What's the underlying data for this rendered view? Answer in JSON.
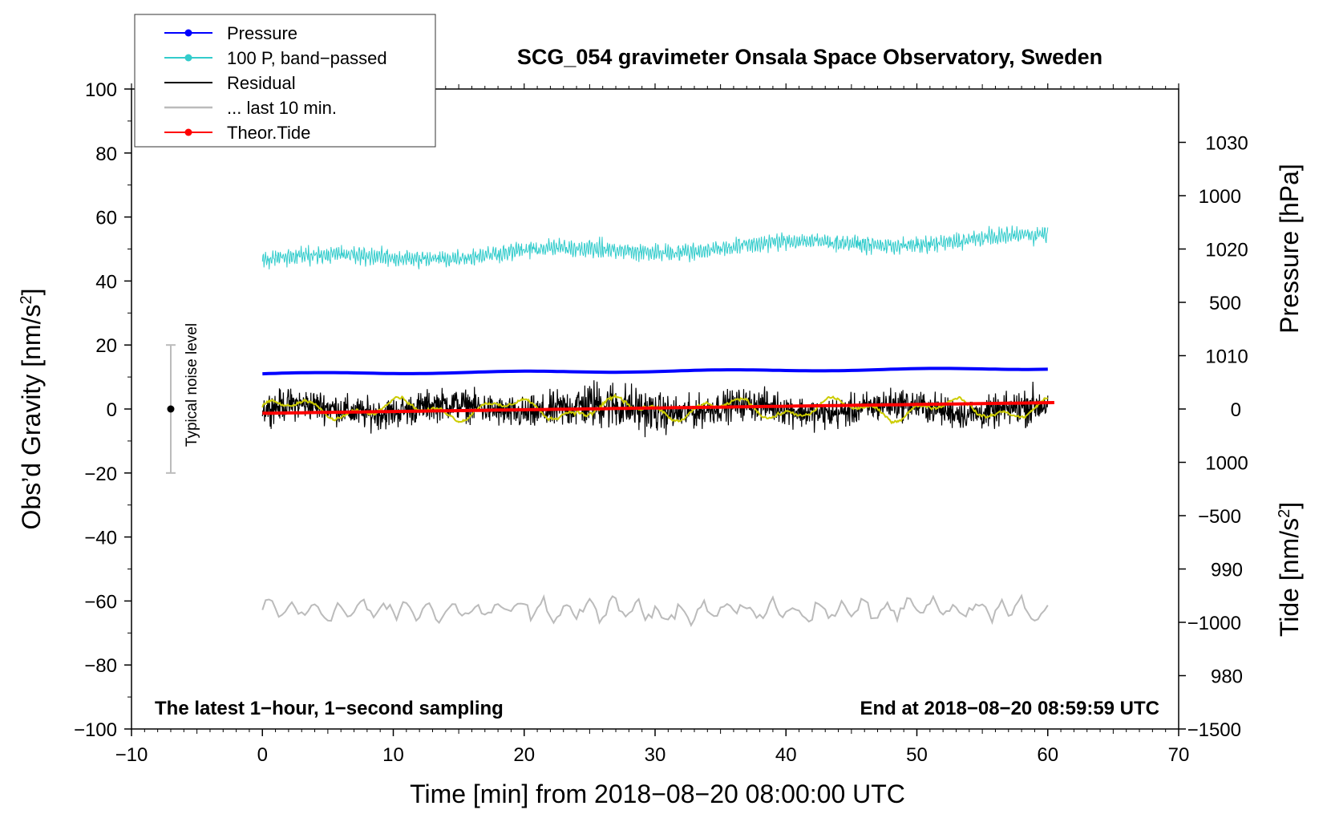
{
  "chart_data": {
    "type": "line",
    "title": "SCG_054 gravimeter Onsala Space Observatory, Sweden",
    "xlabel": "Time [min] from 2018−08−20 08:00:00 UTC",
    "ylabel_left": "Obs’d Gravity [nm/s",
    "ylabel_right_top": "Pressure [hPa]",
    "ylabel_right_bottom": "Tide [nm/s",
    "superscript": "2",
    "closing_bracket": "]",
    "xlim": [
      -10,
      70
    ],
    "ylim": [
      -100,
      100
    ],
    "x_ticks": [
      -10,
      0,
      10,
      20,
      30,
      40,
      50,
      60,
      70
    ],
    "y_ticks": [
      -100,
      -80,
      -60,
      -40,
      -20,
      0,
      20,
      40,
      60,
      80,
      100
    ],
    "pressure_axis": {
      "range": [
        975,
        1035
      ],
      "ticks": [
        980,
        990,
        1000,
        1010,
        1020,
        1030
      ]
    },
    "tide_axis": {
      "range": [
        -1500,
        1500
      ],
      "ticks": [
        -1500,
        -1000,
        -500,
        0,
        500,
        1000
      ]
    },
    "x_tick_labels": [
      "−10",
      "0",
      "10",
      "20",
      "30",
      "40",
      "50",
      "60",
      "70"
    ],
    "y_tick_labels": [
      "−100",
      "−80",
      "−60",
      "−40",
      "−20",
      "0",
      "20",
      "40",
      "60",
      "80",
      "100"
    ],
    "pressure_tick_labels": [
      "980",
      "990",
      "1000",
      "1010",
      "1020",
      "1030"
    ],
    "tide_tick_labels": [
      "−1500",
      "−1000",
      "−500",
      "0",
      "500",
      "1000"
    ],
    "noise_label": "Typical noise level",
    "noise_bar": {
      "x": -7,
      "range": [
        -20,
        20
      ]
    },
    "corner_left": "The latest 1−hour, 1−second sampling",
    "corner_right": "End at 2018−08−20 08:59:59 UTC",
    "legend": [
      {
        "label": "Pressure",
        "color": "#0000ff",
        "marker": true
      },
      {
        "label": "100 P, band−passed",
        "color": "#33cccc",
        "marker": true
      },
      {
        "label": "Residual",
        "color": "#000000",
        "marker": false
      },
      {
        "label": "... last 10 min.",
        "color": "#bbbbbb",
        "marker": false
      },
      {
        "label": "Theor.Tide",
        "color": "#ff0000",
        "marker": true
      }
    ],
    "series": [
      {
        "name": "Pressure",
        "color": "#0000ff",
        "axis": "pressure",
        "x_range": [
          0,
          60
        ],
        "y_start": 1008.3,
        "y_end": 1008.8
      },
      {
        "name": "100 P, band−passed",
        "color": "#33cccc",
        "axis": "left",
        "x_range": [
          0,
          60
        ],
        "center_start": 46.5,
        "center_end": 53.5,
        "amplitude": 2.5
      },
      {
        "name": "Residual",
        "color": "#000000",
        "axis": "left",
        "x_range": [
          0,
          60
        ],
        "center": 0,
        "amplitude": 5.5
      },
      {
        "name": "Residual smoothed",
        "color": "#cccc00",
        "axis": "left",
        "x_range": [
          0,
          60
        ],
        "center": 0,
        "amplitude": 3
      },
      {
        "name": "... last 10 min.",
        "color": "#bbbbbb",
        "axis": "left",
        "x_range": [
          0,
          60
        ],
        "center": -63,
        "amplitude": 5
      },
      {
        "name": "Theor.Tide",
        "color": "#ff0000",
        "axis": "tide",
        "x_range": [
          0,
          60.5
        ],
        "y_start": -20,
        "y_end": 30
      }
    ]
  }
}
